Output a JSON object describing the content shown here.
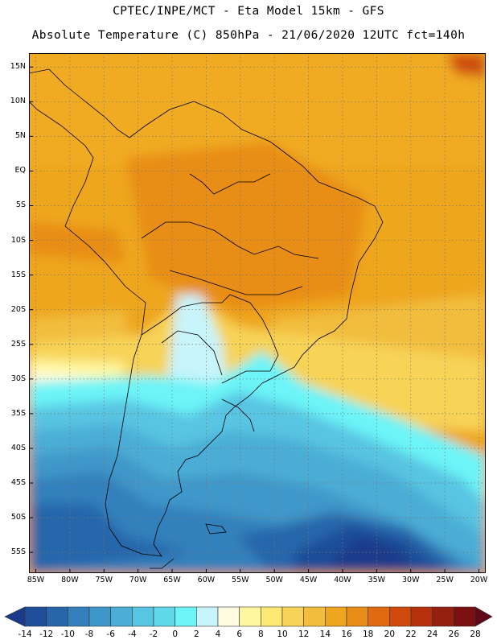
{
  "header": {
    "line1": "CPTEC/INPE/MCT -  Eta Model 15km - GFS",
    "line2": "Absolute Temperature (C) 850hPa - 21/06/2020 12UTC fct=140h"
  },
  "map": {
    "lon_range": [
      -86,
      -19
    ],
    "lat_range": [
      -58,
      17
    ],
    "lat_ticks": [
      {
        "value": 15,
        "label": "15N"
      },
      {
        "value": 10,
        "label": "10N"
      },
      {
        "value": 5,
        "label": "5N"
      },
      {
        "value": 0,
        "label": "EQ"
      },
      {
        "value": -5,
        "label": "5S"
      },
      {
        "value": -10,
        "label": "10S"
      },
      {
        "value": -15,
        "label": "15S"
      },
      {
        "value": -20,
        "label": "20S"
      },
      {
        "value": -25,
        "label": "25S"
      },
      {
        "value": -30,
        "label": "30S"
      },
      {
        "value": -35,
        "label": "35S"
      },
      {
        "value": -40,
        "label": "40S"
      },
      {
        "value": -45,
        "label": "45S"
      },
      {
        "value": -50,
        "label": "50S"
      },
      {
        "value": -55,
        "label": "55S"
      }
    ],
    "lon_ticks": [
      {
        "value": -85,
        "label": "85W"
      },
      {
        "value": -80,
        "label": "80W"
      },
      {
        "value": -75,
        "label": "75W"
      },
      {
        "value": -70,
        "label": "70W"
      },
      {
        "value": -65,
        "label": "65W"
      },
      {
        "value": -60,
        "label": "60W"
      },
      {
        "value": -55,
        "label": "55W"
      },
      {
        "value": -50,
        "label": "50W"
      },
      {
        "value": -45,
        "label": "45W"
      },
      {
        "value": -40,
        "label": "40W"
      },
      {
        "value": -35,
        "label": "35W"
      },
      {
        "value": -30,
        "label": "30W"
      },
      {
        "value": -25,
        "label": "25W"
      },
      {
        "value": -20,
        "label": "20W"
      }
    ],
    "grid": "dotted",
    "unit": "C"
  },
  "colorbar": {
    "labels": [
      "-14",
      "-12",
      "-10",
      "-8",
      "-6",
      "-4",
      "-2",
      "0",
      "2",
      "4",
      "6",
      "8",
      "10",
      "12",
      "14",
      "16",
      "18",
      "20",
      "22",
      "24",
      "26",
      "28"
    ],
    "colors": [
      "#1a3a8a",
      "#1f4e98",
      "#2866aa",
      "#3380bc",
      "#3f97c9",
      "#4cadd6",
      "#58c5e2",
      "#60d8ec",
      "#6cf4f8",
      "#c8f4fb",
      "#fffae0",
      "#fff7a0",
      "#fde874",
      "#f7d357",
      "#f2bd3c",
      "#eea61e",
      "#e88d17",
      "#df6a0f",
      "#cf4a0c",
      "#b6300c",
      "#962010",
      "#7a1010",
      "#5e0818"
    ]
  }
}
